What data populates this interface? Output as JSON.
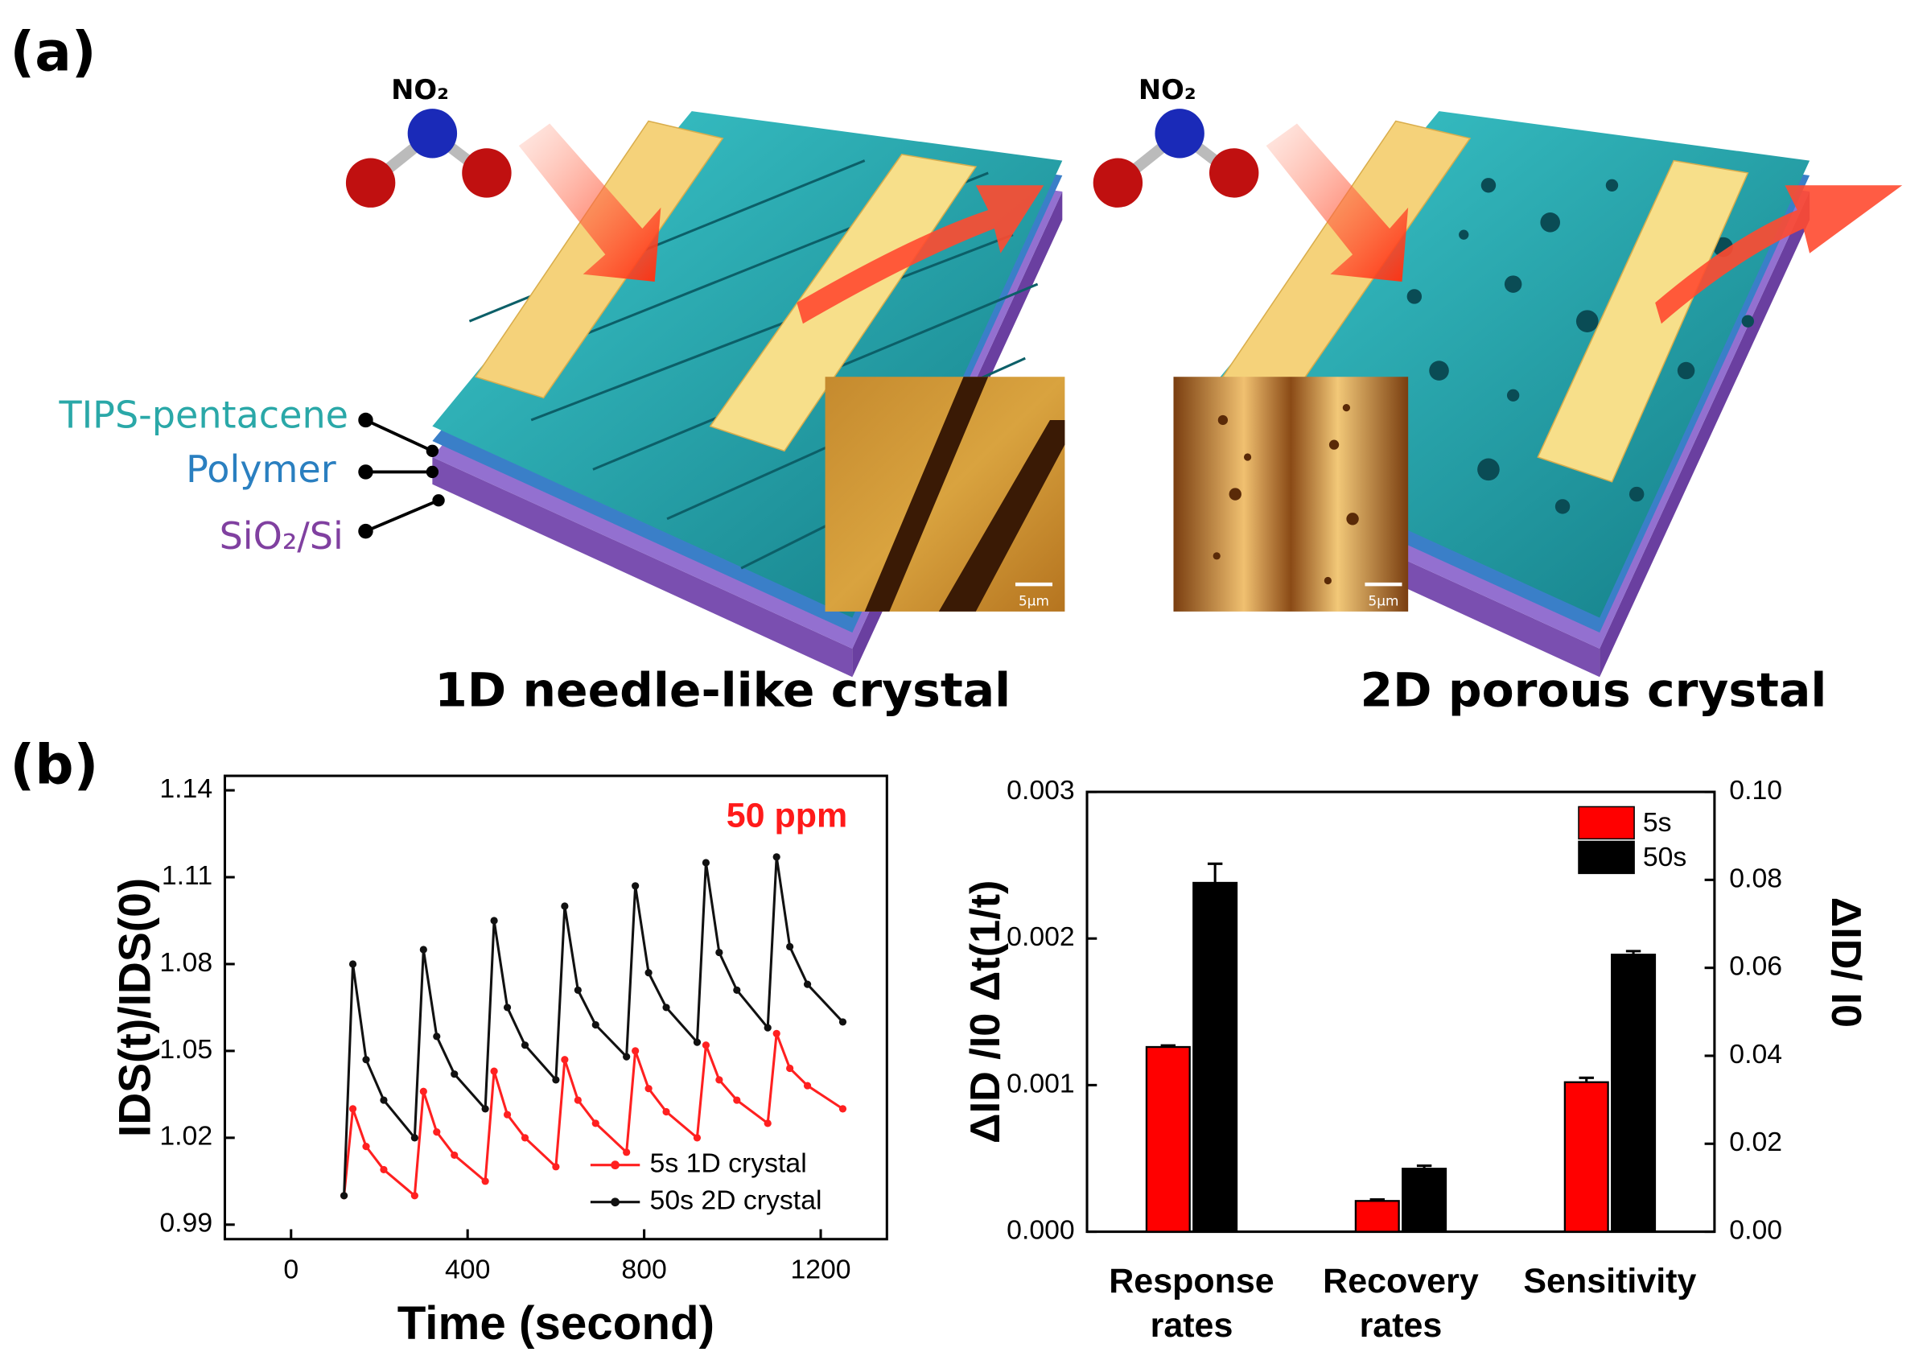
{
  "panels": {
    "a": "(a)",
    "b": "(b)"
  },
  "illustration": {
    "molecule_labels": [
      "NO₂",
      "NO₂"
    ],
    "layers": [
      "TIPS-pentacene",
      "Polymer",
      "SiO₂/Si"
    ],
    "captions": [
      "1D needle-like crystal",
      "2D porous crystal"
    ],
    "scale_bars": [
      "5μm",
      "5μm"
    ]
  },
  "chart_data": [
    {
      "type": "line",
      "x_label": "Time (second)",
      "y_label": "IDS(t)/IDS(0)",
      "annotation": "50 ppm",
      "annotation_color": "#ff1a1a",
      "xlim": [
        -150,
        1350
      ],
      "xticks": [
        0,
        400,
        800,
        1200
      ],
      "ylim": [
        0.985,
        1.145
      ],
      "yticks": [
        0.99,
        1.02,
        1.05,
        1.08,
        1.11,
        1.14
      ],
      "legend": "lower right",
      "x": [
        120,
        140,
        170,
        210,
        280,
        300,
        330,
        370,
        440,
        460,
        490,
        530,
        600,
        620,
        650,
        690,
        760,
        780,
        810,
        850,
        920,
        940,
        970,
        1010,
        1080,
        1100,
        1130,
        1170,
        1250
      ],
      "series": [
        {
          "name": "5s 1D crystal",
          "color": "#ff2020",
          "values": [
            1.0,
            1.03,
            1.017,
            1.009,
            1.0,
            1.036,
            1.022,
            1.014,
            1.005,
            1.043,
            1.028,
            1.02,
            1.01,
            1.047,
            1.033,
            1.025,
            1.015,
            1.05,
            1.037,
            1.029,
            1.02,
            1.052,
            1.04,
            1.033,
            1.025,
            1.056,
            1.044,
            1.038,
            1.03
          ]
        },
        {
          "name": "50s 2D crystal",
          "color": "#111111",
          "values": [
            1.0,
            1.08,
            1.047,
            1.033,
            1.02,
            1.085,
            1.055,
            1.042,
            1.03,
            1.095,
            1.065,
            1.052,
            1.04,
            1.1,
            1.071,
            1.059,
            1.048,
            1.107,
            1.077,
            1.065,
            1.053,
            1.115,
            1.084,
            1.071,
            1.058,
            1.117,
            1.086,
            1.073,
            1.06
          ]
        }
      ]
    },
    {
      "type": "bar",
      "y_label": "ΔID /I0 Δt(1/t)",
      "y2_label": "ΔID/ I0",
      "categories": [
        "Response rates",
        "Recovery rates",
        "Sensitivity"
      ],
      "category_axis": [
        "y",
        "y",
        "y2"
      ],
      "ylim": [
        0,
        0.003
      ],
      "yticks": [
        {
          "value": 0,
          "label": "0.000"
        },
        0.001,
        0.002,
        0.003
      ],
      "y2lim": [
        0,
        0.1
      ],
      "y2ticks": [
        {
          "value": 0,
          "label": "0.00"
        },
        0.02,
        0.04,
        0.06,
        0.08,
        {
          "value": 0.1,
          "label": "0.10"
        }
      ],
      "legend": "upper right",
      "series": [
        {
          "name": "5s",
          "color": "#ff0000",
          "values": [
            0.00126,
            0.00021,
            0.034
          ],
          "errors": [
            1e-05,
            1e-05,
            0.001
          ]
        },
        {
          "name": "50s",
          "color": "#000000",
          "values": [
            0.00238,
            0.00043,
            0.063
          ],
          "errors": [
            0.00013,
            2e-05,
            0.0008
          ]
        }
      ]
    }
  ]
}
